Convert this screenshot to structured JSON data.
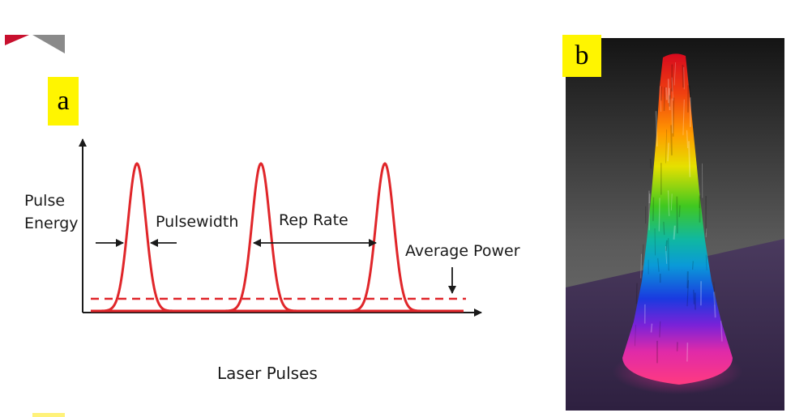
{
  "panels": {
    "a": {
      "label": "a",
      "y_axis_label_line1": "Pulse",
      "y_axis_label_line2": "Energy",
      "pulsewidth_label": "Pulsewidth",
      "rep_rate_label": "Rep Rate",
      "average_power_label": "Average Power",
      "x_axis_label": "Laser Pulses",
      "pulse_color": "#e0262a",
      "axis_color": "#1a1a1a"
    },
    "b": {
      "label": "b",
      "background_top": "#1c1c1c",
      "background_bottom": "#3a2a4a",
      "beam_colors": [
        "#e0102a",
        "#ff7a00",
        "#f2e000",
        "#18c020",
        "#00b0c0",
        "#1838e0",
        "#9a20d0",
        "#ff2aa0"
      ]
    }
  }
}
